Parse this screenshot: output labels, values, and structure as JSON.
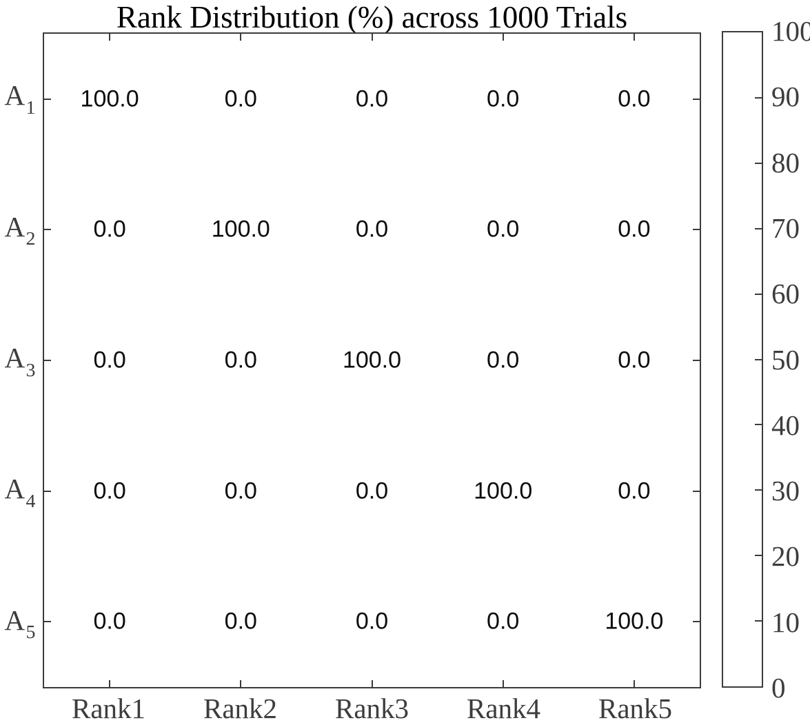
{
  "figure": {
    "title": "Rank Distribution (%) across 1000 Trials"
  },
  "chart_data": {
    "type": "heatmap",
    "title": "Rank Distribution (%) across 1000 Trials",
    "row_labels": [
      {
        "base": "A",
        "sub": "1"
      },
      {
        "base": "A",
        "sub": "2"
      },
      {
        "base": "A",
        "sub": "3"
      },
      {
        "base": "A",
        "sub": "4"
      },
      {
        "base": "A",
        "sub": "5"
      }
    ],
    "col_labels": [
      "Rank1",
      "Rank2",
      "Rank3",
      "Rank4",
      "Rank5"
    ],
    "values": [
      [
        100.0,
        0.0,
        0.0,
        0.0,
        0.0
      ],
      [
        0.0,
        100.0,
        0.0,
        0.0,
        0.0
      ],
      [
        0.0,
        0.0,
        100.0,
        0.0,
        0.0
      ],
      [
        0.0,
        0.0,
        0.0,
        100.0,
        0.0
      ],
      [
        0.0,
        0.0,
        0.0,
        0.0,
        100.0
      ]
    ],
    "value_decimals": 1,
    "colorbar": {
      "min": 0,
      "max": 100,
      "labels": [
        0,
        10,
        20,
        30,
        40,
        50,
        60,
        70,
        80,
        90,
        100
      ],
      "tick_marks": [
        10,
        20,
        30,
        40,
        50,
        60,
        70,
        80,
        90
      ],
      "position": "right"
    },
    "layout": {
      "grid": false,
      "legend": "none",
      "cell_fill": "#ffffff",
      "tick_direction": "in"
    },
    "colors": {
      "axis_border": "#3b3b3b",
      "tick_label": "#3d3d3d",
      "title_text": "#000000",
      "cell_text": "#0d0d0d",
      "background": "#ffffff"
    }
  }
}
